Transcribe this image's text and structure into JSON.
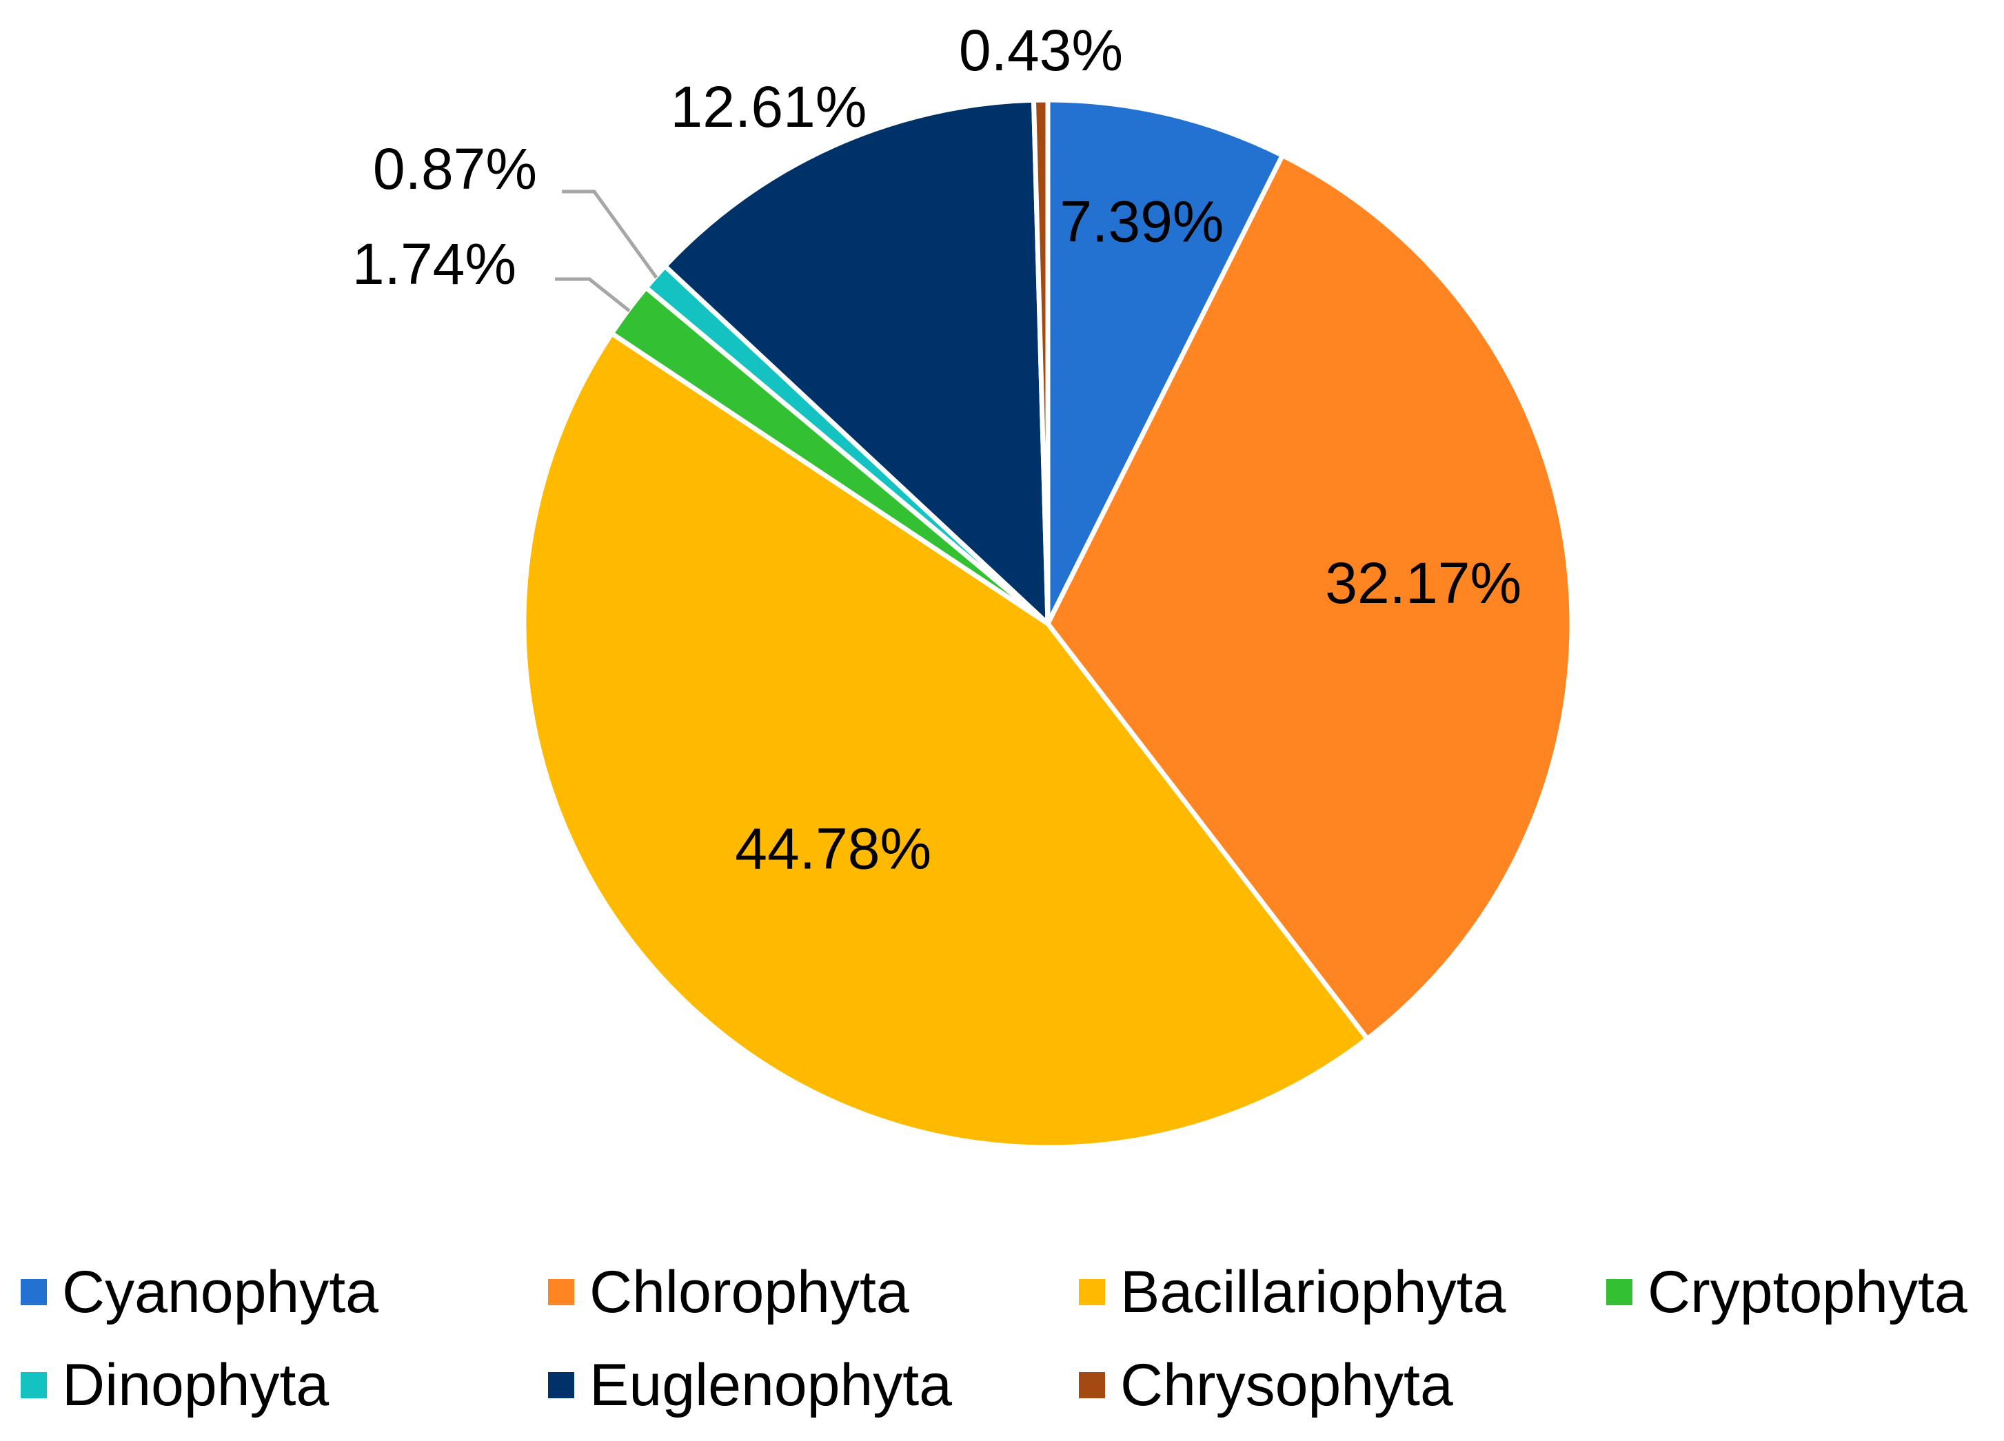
{
  "chart_data": {
    "type": "pie",
    "categories": [
      "Cyanophyta",
      "Chlorophyta",
      "Bacillariophyta",
      "Cryptophyta",
      "Dinophyta",
      "Euglenophyta",
      "Chrysophyta"
    ],
    "values": [
      7.39,
      32.17,
      44.78,
      1.74,
      0.87,
      12.61,
      0.43
    ],
    "value_labels": [
      "7.39%",
      "32.17%",
      "44.78%",
      "1.74%",
      "0.87%",
      "12.61%",
      "0.43%"
    ],
    "unit": "%",
    "colors": [
      "#2372D2",
      "#FF8523",
      "#FFBA00",
      "#33C033",
      "#15C2C2",
      "#00326A",
      "#A34A12"
    ],
    "legend_placement": "bottom",
    "start_angle_deg": 0,
    "direction": "clockwise"
  }
}
